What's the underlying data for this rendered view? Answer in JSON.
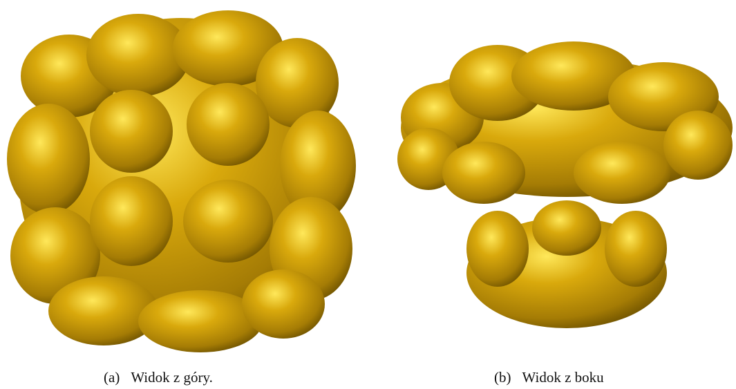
{
  "figures": [
    {
      "label": "(a)",
      "caption": "Widok z góry."
    },
    {
      "label": "(b)",
      "caption": "Widok z boku"
    }
  ]
}
